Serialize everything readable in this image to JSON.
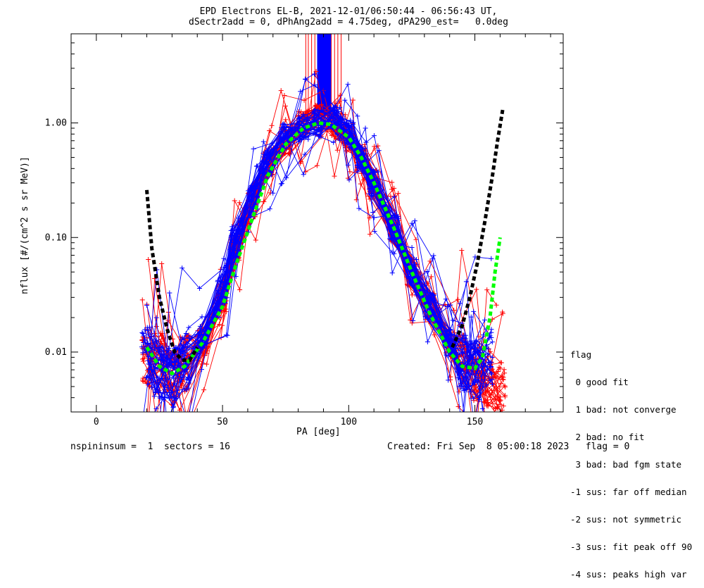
{
  "title_line1": "EPD Electrons EL-B, 2021-12-01/06:50:44 - 06:56:43 UT,",
  "title_line2": "dSectr2add = 0, dPhAng2add = 4.75deg, dPA290_est=   0.0deg",
  "footer_left": "nspininsum =  1  sectors = 16",
  "footer_right": "Created: Fri Sep  8 05:00:18 2023   flag = 0",
  "legend": {
    "title": "flag",
    "items": [
      " 0 good fit",
      " 1 bad: not converge",
      " 2 bad: no fit",
      " 3 bad: bad fgm state",
      "-1 sus: far off median",
      "-2 sus: not symmetric",
      "-3 sus: fit peak off 90",
      "-4 sus: peaks high var"
    ]
  },
  "colors": {
    "series_red": "#ff0000",
    "series_blue": "#0000ff",
    "fit_green": "#00ff00",
    "fit_black": "#000000"
  },
  "chart_data": {
    "type": "line",
    "xlabel": "PA [deg]",
    "ylabel": "nflux [#/(cm^2 s sr MeV)]",
    "xlim": [
      -10,
      185
    ],
    "ylim": [
      0.003,
      6.0
    ],
    "yscale": "log",
    "x_ticks": [
      0,
      50,
      100,
      150
    ],
    "y_ticks": [
      {
        "value": 0.01,
        "label": "0.01"
      },
      {
        "value": 0.1,
        "label": "0.10"
      },
      {
        "value": 1.0,
        "label": "1.00"
      }
    ],
    "series": [
      {
        "color": "red",
        "x": [
          20,
          25,
          30,
          35,
          42,
          50,
          55,
          62,
          68,
          75,
          82,
          88,
          95,
          100,
          105,
          110,
          118,
          125,
          132,
          140,
          145,
          150,
          155,
          160
        ],
        "y": [
          0.009,
          0.008,
          0.006,
          0.008,
          0.012,
          0.03,
          0.08,
          0.2,
          0.45,
          0.7,
          1.0,
          1.1,
          0.95,
          0.75,
          0.5,
          0.3,
          0.12,
          0.05,
          0.025,
          0.012,
          0.008,
          0.007,
          0.006,
          0.005
        ]
      },
      {
        "color": "blue",
        "x": [
          20,
          25,
          30,
          35,
          42,
          50,
          55,
          62,
          68,
          75,
          82,
          88,
          95,
          100,
          105,
          110,
          118,
          125,
          132,
          140,
          145,
          150,
          155
        ],
        "y": [
          0.009,
          0.007,
          0.006,
          0.008,
          0.013,
          0.035,
          0.09,
          0.22,
          0.45,
          0.75,
          0.9,
          1.0,
          1.05,
          0.8,
          0.5,
          0.3,
          0.12,
          0.05,
          0.025,
          0.012,
          0.008,
          0.007,
          0.009
        ]
      },
      {
        "color": "green",
        "style": "dashed",
        "x": [
          20,
          25,
          30,
          35,
          42,
          50,
          55,
          62,
          68,
          75,
          82,
          88,
          93,
          100,
          105,
          110,
          118,
          125,
          132,
          140,
          145,
          150,
          153,
          156,
          158,
          160
        ],
        "y": [
          0.011,
          0.0075,
          0.0065,
          0.0075,
          0.012,
          0.025,
          0.055,
          0.15,
          0.35,
          0.65,
          0.9,
          1.0,
          0.97,
          0.75,
          0.5,
          0.3,
          0.12,
          0.05,
          0.022,
          0.01,
          0.0075,
          0.0072,
          0.009,
          0.02,
          0.05,
          0.1
        ]
      },
      {
        "color": "black",
        "style": "dashed",
        "x": [
          20,
          22,
          25,
          28,
          31,
          34,
          37,
          40
        ],
        "y": [
          0.26,
          0.08,
          0.03,
          0.016,
          0.01,
          0.0085,
          0.0085,
          0.011
        ]
      },
      {
        "color": "black",
        "style": "dashed",
        "x": [
          141,
          145,
          148,
          151,
          154,
          157,
          159,
          161
        ],
        "y": [
          0.011,
          0.017,
          0.03,
          0.06,
          0.14,
          0.35,
          0.7,
          1.3
        ]
      }
    ]
  }
}
